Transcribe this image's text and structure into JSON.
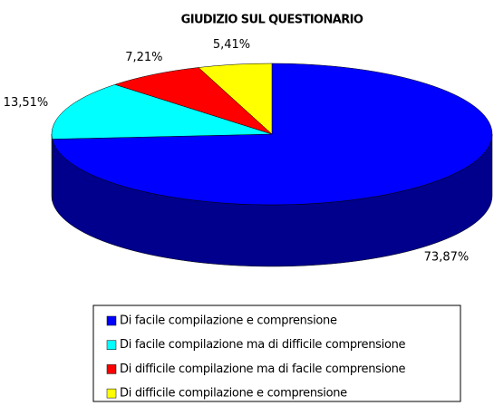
{
  "chart_data": {
    "type": "pie",
    "title": "GIUDIZIO SUL QUESTIONARIO",
    "categories": [
      "Di facile compilazione e comprensione",
      "Di facile compilazione ma di difficile comprensione",
      "Di difficile compilazione ma di facile comprensione",
      "Di difficile compilazione e comprensione"
    ],
    "values": [
      73.87,
      13.51,
      7.21,
      5.41
    ],
    "value_labels": [
      "73,87%",
      "13,51%",
      "7,21%",
      "5,41%"
    ],
    "colors": [
      "#0000ff",
      "#00ffff",
      "#ff0000",
      "#ffff00"
    ],
    "legend": "bottom"
  }
}
